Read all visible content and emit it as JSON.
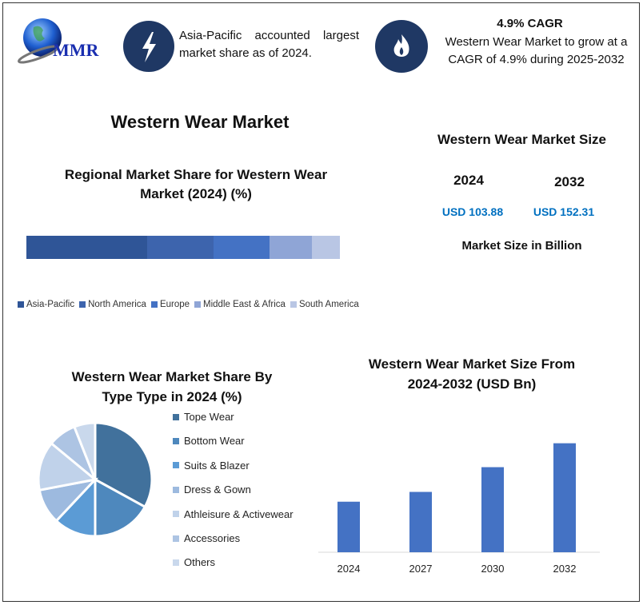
{
  "header": {
    "logo_text": "MMR",
    "highlight_1": "Asia-Pacific accounted largest market share as of 2024.",
    "cagr_title": "4.9% CAGR",
    "cagr_text": "Western Wear Market to grow at a CAGR of 4.9% during 2025-2032",
    "icons": [
      "lightning-icon",
      "flame-icon"
    ]
  },
  "main_title": "Western Wear Market",
  "market_size": {
    "title": "Western Wear Market Size",
    "year_1": "2024",
    "year_2": "2032",
    "value_1": "USD 103.88",
    "value_2": "USD 152.31",
    "note": "Market Size in Billion",
    "value_color": "#0070c0"
  },
  "chart_data": [
    {
      "type": "bar",
      "stacked": true,
      "orientation": "horizontal",
      "title": "Regional Market Share for Western Wear Market (2024) (%)",
      "legend_position": "bottom",
      "series": [
        {
          "name": "Asia-Pacific",
          "values": [
            38.5
          ],
          "color": "#2f5597"
        },
        {
          "name": "North America",
          "values": [
            21.2
          ],
          "color": "#3d64ad"
        },
        {
          "name": "Europe",
          "values": [
            17.9
          ],
          "color": "#4472c4"
        },
        {
          "name": "Middle East & Africa",
          "values": [
            13.5
          ],
          "color": "#8fa5d6"
        },
        {
          "name": "South America",
          "values": [
            8.9
          ],
          "color": "#b9c6e4"
        }
      ]
    },
    {
      "type": "pie",
      "title": "Western Wear Market Share By Type Type in 2024 (%)",
      "legend_position": "right",
      "categories": [
        "Tope Wear",
        "Bottom Wear",
        "Suits & Blazer",
        "Dress & Gown",
        "Athleisure & Activewear",
        "Accessories",
        "Others"
      ],
      "values": [
        33,
        17,
        12,
        10,
        14,
        8,
        6
      ],
      "colors": [
        "#41719c",
        "#4e88bd",
        "#5b9bd5",
        "#9dbadf",
        "#c0d2ea",
        "#adc4e3",
        "#c9d8ec"
      ]
    },
    {
      "type": "bar",
      "title": "Western Wear Market Size From 2024-2032 (USD Bn)",
      "categories": [
        "2024",
        "2027",
        "2030",
        "2032"
      ],
      "values": [
        103.88,
        112,
        132.5,
        152.31
      ],
      "ylim": [
        62,
        160
      ],
      "grid": false,
      "color": "#4472c4"
    }
  ]
}
